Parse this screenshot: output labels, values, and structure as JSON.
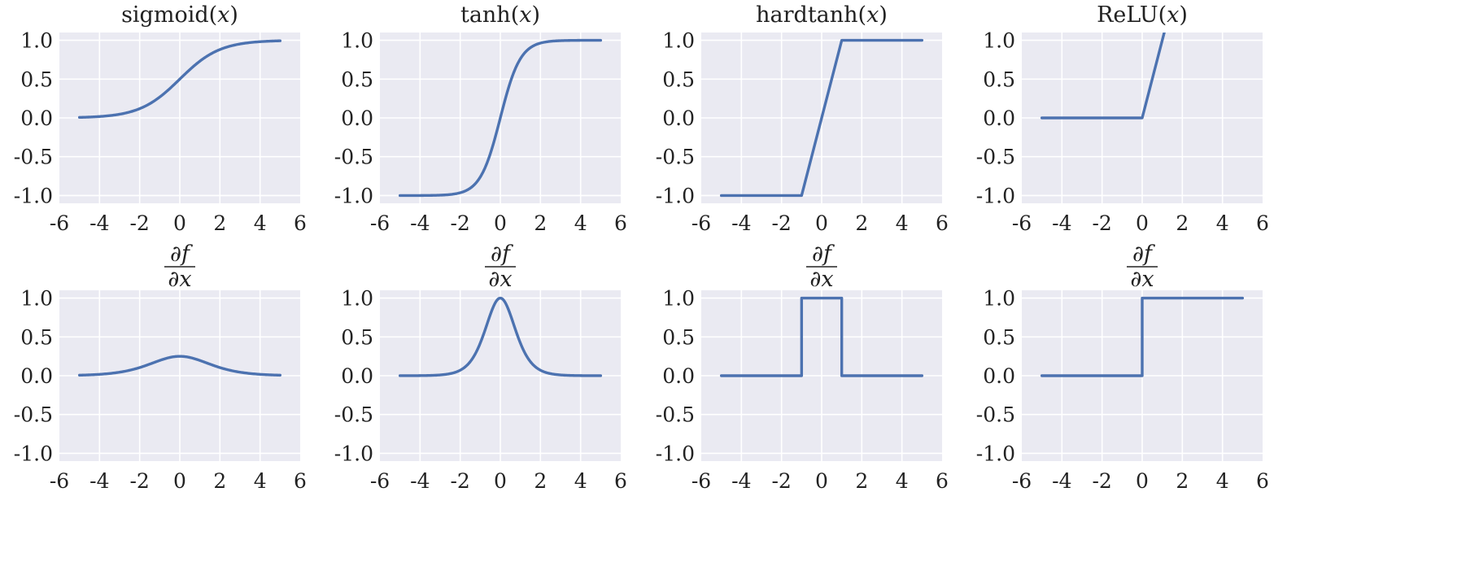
{
  "colors": {
    "background": "#ffffff",
    "plot_area": "#eaeaf2",
    "grid": "#ffffff",
    "line": "#4c72b0",
    "text": "#222222"
  },
  "derivative_title": {
    "numerator": "∂f",
    "denominator": "∂x"
  },
  "chart_data": [
    {
      "type": "line",
      "row": "function",
      "title": {
        "name": "sigmoid",
        "arg": "x"
      },
      "function": "sigmoid",
      "xlim": [
        -6,
        6
      ],
      "ylim": [
        -1.1,
        1.1
      ],
      "xticks": [
        -6,
        -4,
        -2,
        0,
        2,
        4,
        6
      ],
      "xtick_labels": [
        "-6",
        "-4",
        "-2",
        "0",
        "2",
        "4",
        "6"
      ],
      "yticks": [
        -1.0,
        -0.5,
        0.0,
        0.5,
        1.0
      ],
      "ytick_labels": [
        "-1.0",
        "-0.5",
        "0.0",
        "0.5",
        "1.0"
      ],
      "grid": true,
      "x": [
        -5,
        -4,
        -3,
        -2,
        -1,
        0,
        1,
        2,
        3,
        4,
        5
      ],
      "y": [
        0.007,
        0.018,
        0.047,
        0.119,
        0.269,
        0.5,
        0.731,
        0.881,
        0.953,
        0.982,
        0.993
      ]
    },
    {
      "type": "line",
      "row": "function",
      "title": {
        "name": "tanh",
        "arg": "x"
      },
      "function": "tanh",
      "xlim": [
        -6,
        6
      ],
      "ylim": [
        -1.1,
        1.1
      ],
      "xticks": [
        -6,
        -4,
        -2,
        0,
        2,
        4,
        6
      ],
      "xtick_labels": [
        "-6",
        "-4",
        "-2",
        "0",
        "2",
        "4",
        "6"
      ],
      "yticks": [
        -1.0,
        -0.5,
        0.0,
        0.5,
        1.0
      ],
      "ytick_labels": [
        "-1.0",
        "-0.5",
        "0.0",
        "0.5",
        "1.0"
      ],
      "grid": true,
      "x": [
        -5,
        -4,
        -3,
        -2,
        -1,
        0,
        1,
        2,
        3,
        4,
        5
      ],
      "y": [
        -1.0,
        -0.999,
        -0.995,
        -0.964,
        -0.762,
        0.0,
        0.762,
        0.964,
        0.995,
        0.999,
        1.0
      ]
    },
    {
      "type": "line",
      "row": "function",
      "title": {
        "name": "hardtanh",
        "arg": "x"
      },
      "function": "hardtanh",
      "xlim": [
        -6,
        6
      ],
      "ylim": [
        -1.1,
        1.1
      ],
      "xticks": [
        -6,
        -4,
        -2,
        0,
        2,
        4,
        6
      ],
      "xtick_labels": [
        "-6",
        "-4",
        "-2",
        "0",
        "2",
        "4",
        "6"
      ],
      "yticks": [
        -1.0,
        -0.5,
        0.0,
        0.5,
        1.0
      ],
      "ytick_labels": [
        "-1.0",
        "-0.5",
        "0.0",
        "0.5",
        "1.0"
      ],
      "grid": true,
      "x": [
        -5,
        -1,
        1,
        5
      ],
      "y": [
        -1,
        -1,
        1,
        1
      ]
    },
    {
      "type": "line",
      "row": "function",
      "title": {
        "name": "ReLU",
        "arg": "x"
      },
      "function": "relu",
      "xlim": [
        -6,
        6
      ],
      "ylim": [
        -1.1,
        1.1
      ],
      "xticks": [
        -6,
        -4,
        -2,
        0,
        2,
        4,
        6
      ],
      "xtick_labels": [
        "-6",
        "-4",
        "-2",
        "0",
        "2",
        "4",
        "6"
      ],
      "yticks": [
        -1.0,
        -0.5,
        0.0,
        0.5,
        1.0
      ],
      "ytick_labels": [
        "-1.0",
        "-0.5",
        "0.0",
        "0.5",
        "1.0"
      ],
      "grid": true,
      "x": [
        -5,
        0,
        1.1
      ],
      "y": [
        0,
        0,
        1.1
      ]
    },
    {
      "type": "line",
      "row": "derivative",
      "function": "sigmoid-derivative",
      "xlim": [
        -6,
        6
      ],
      "ylim": [
        -1.1,
        1.1
      ],
      "xticks": [
        -6,
        -4,
        -2,
        0,
        2,
        4,
        6
      ],
      "xtick_labels": [
        "-6",
        "-4",
        "-2",
        "0",
        "2",
        "4",
        "6"
      ],
      "yticks": [
        -1.0,
        -0.5,
        0.0,
        0.5,
        1.0
      ],
      "ytick_labels": [
        "-1.0",
        "-0.5",
        "0.0",
        "0.5",
        "1.0"
      ],
      "grid": true,
      "x": [
        -5,
        -4,
        -3,
        -2,
        -1,
        0,
        1,
        2,
        3,
        4,
        5
      ],
      "y": [
        0.007,
        0.018,
        0.045,
        0.105,
        0.197,
        0.25,
        0.197,
        0.105,
        0.045,
        0.018,
        0.007
      ]
    },
    {
      "type": "line",
      "row": "derivative",
      "function": "tanh-derivative",
      "xlim": [
        -6,
        6
      ],
      "ylim": [
        -1.1,
        1.1
      ],
      "xticks": [
        -6,
        -4,
        -2,
        0,
        2,
        4,
        6
      ],
      "xtick_labels": [
        "-6",
        "-4",
        "-2",
        "0",
        "2",
        "4",
        "6"
      ],
      "yticks": [
        -1.0,
        -0.5,
        0.0,
        0.5,
        1.0
      ],
      "ytick_labels": [
        "-1.0",
        "-0.5",
        "0.0",
        "0.5",
        "1.0"
      ],
      "grid": true,
      "x": [
        -5,
        -4,
        -3,
        -2,
        -1,
        0,
        1,
        2,
        3,
        4,
        5
      ],
      "y": [
        0.0,
        0.001,
        0.01,
        0.071,
        0.42,
        1.0,
        0.42,
        0.071,
        0.01,
        0.001,
        0.0
      ]
    },
    {
      "type": "line",
      "row": "derivative",
      "function": "hardtanh-derivative",
      "xlim": [
        -6,
        6
      ],
      "ylim": [
        -1.1,
        1.1
      ],
      "xticks": [
        -6,
        -4,
        -2,
        0,
        2,
        4,
        6
      ],
      "xtick_labels": [
        "-6",
        "-4",
        "-2",
        "0",
        "2",
        "4",
        "6"
      ],
      "yticks": [
        -1.0,
        -0.5,
        0.0,
        0.5,
        1.0
      ],
      "ytick_labels": [
        "-1.0",
        "-0.5",
        "0.0",
        "0.5",
        "1.0"
      ],
      "grid": true,
      "x": [
        -5,
        -1,
        -1,
        1,
        1,
        5
      ],
      "y": [
        0,
        0,
        1,
        1,
        0,
        0
      ]
    },
    {
      "type": "line",
      "row": "derivative",
      "function": "relu-derivative",
      "xlim": [
        -6,
        6
      ],
      "ylim": [
        -1.1,
        1.1
      ],
      "xticks": [
        -6,
        -4,
        -2,
        0,
        2,
        4,
        6
      ],
      "xtick_labels": [
        "-6",
        "-4",
        "-2",
        "0",
        "2",
        "4",
        "6"
      ],
      "yticks": [
        -1.0,
        -0.5,
        0.0,
        0.5,
        1.0
      ],
      "ytick_labels": [
        "-1.0",
        "-0.5",
        "0.0",
        "0.5",
        "1.0"
      ],
      "grid": true,
      "x": [
        -5,
        0,
        0,
        5
      ],
      "y": [
        0,
        0,
        1,
        1
      ]
    }
  ]
}
